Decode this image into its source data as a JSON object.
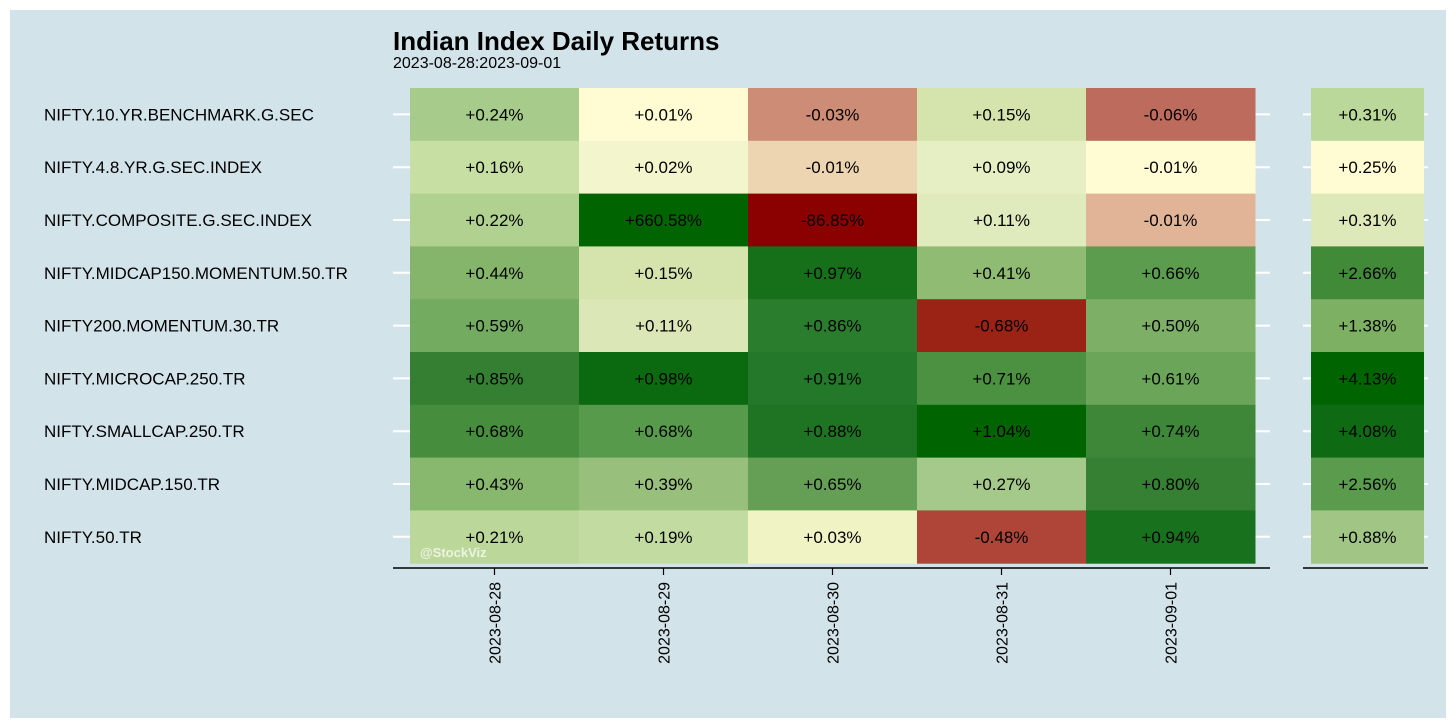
{
  "chart_data": {
    "type": "heatmap",
    "title": "Indian Index Daily Returns",
    "subtitle": "2023-08-28:2023-09-01",
    "x": [
      "2023-08-28",
      "2023-08-29",
      "2023-08-30",
      "2023-08-31",
      "2023-09-01"
    ],
    "y": [
      "NIFTY.10.YR.BENCHMARK.G.SEC",
      "NIFTY.4.8.YR.G.SEC.INDEX",
      "NIFTY.COMPOSITE.G.SEC.INDEX",
      "NIFTY.MIDCAP150.MOMENTUM.50.TR",
      "NIFTY200.MOMENTUM.30.TR",
      "NIFTY.MICROCAP.250.TR",
      "NIFTY.SMALLCAP.250.TR",
      "NIFTY.MIDCAP.150.TR",
      "NIFTY.50.TR"
    ],
    "values": [
      [
        0.24,
        0.01,
        -0.03,
        0.15,
        -0.06
      ],
      [
        0.16,
        0.02,
        -0.01,
        0.09,
        -0.01
      ],
      [
        0.22,
        660.58,
        -86.85,
        0.11,
        -0.01
      ],
      [
        0.44,
        0.15,
        0.97,
        0.41,
        0.66
      ],
      [
        0.59,
        0.11,
        0.86,
        -0.68,
        0.5
      ],
      [
        0.85,
        0.98,
        0.91,
        0.71,
        0.61
      ],
      [
        0.68,
        0.68,
        0.88,
        1.04,
        0.74
      ],
      [
        0.43,
        0.39,
        0.65,
        0.27,
        0.8
      ],
      [
        0.21,
        0.19,
        0.03,
        -0.48,
        0.94
      ]
    ],
    "cell_labels": [
      [
        "+0.24%",
        "+0.01%",
        "-0.03%",
        "+0.15%",
        "-0.06%"
      ],
      [
        "+0.16%",
        "+0.02%",
        "-0.01%",
        "+0.09%",
        "-0.01%"
      ],
      [
        "+0.22%",
        "+660.58%",
        "-86.85%",
        "+0.11%",
        "-0.01%"
      ],
      [
        "+0.44%",
        "+0.15%",
        "+0.97%",
        "+0.41%",
        "+0.66%"
      ],
      [
        "+0.59%",
        "+0.11%",
        "+0.86%",
        "-0.68%",
        "+0.50%"
      ],
      [
        "+0.85%",
        "+0.98%",
        "+0.91%",
        "+0.71%",
        "+0.61%"
      ],
      [
        "+0.68%",
        "+0.68%",
        "+0.88%",
        "+1.04%",
        "+0.74%"
      ],
      [
        "+0.43%",
        "+0.39%",
        "+0.65%",
        "+0.27%",
        "+0.80%"
      ],
      [
        "+0.21%",
        "+0.19%",
        "+0.03%",
        "-0.48%",
        "+0.94%"
      ]
    ],
    "cell_colors": [
      [
        "#a6cb8a",
        "#fffbd3",
        "#cd8c76",
        "#d5e3ad",
        "#bd6b5c"
      ],
      [
        "#c8dfa4",
        "#f3f6cc",
        "#edd5b2",
        "#e6efc3",
        "#fffbd3"
      ],
      [
        "#b1d190",
        "#006400",
        "#8b0000",
        "#dfeabd",
        "#e1b497"
      ],
      [
        "#84b56a",
        "#d5e3ad",
        "#16701a",
        "#8fbb72",
        "#5c9c4e"
      ],
      [
        "#73ab60",
        "#dce7b8",
        "#2b7d2e",
        "#9b2316",
        "#7daf66"
      ],
      [
        "#357f32",
        "#0b6a10",
        "#247829",
        "#4c9142",
        "#6ba55a"
      ],
      [
        "#478d3e",
        "#589a4b",
        "#1f7424",
        "#006400",
        "#3e8738"
      ],
      [
        "#88b86d",
        "#98c07c",
        "#659f55",
        "#a5c98a",
        "#368033"
      ],
      [
        "#bcd79a",
        "#c2dba1",
        "#f0f4c4",
        "#ae4538",
        "#18711c"
      ]
    ],
    "totals": {
      "values": [
        0.31,
        0.25,
        0.31,
        2.66,
        1.38,
        4.13,
        4.08,
        2.56,
        0.88
      ],
      "labels": [
        "+0.31%",
        "+0.25%",
        "+0.31%",
        "+2.66%",
        "+1.38%",
        "+4.13%",
        "+4.08%",
        "+2.56%",
        "+0.88%"
      ],
      "colors": [
        "#bad89a",
        "#fffbd3",
        "#dde9b8",
        "#418a38",
        "#7eb064",
        "#006400",
        "#0e6a13",
        "#5b9b4d",
        "#a0c585"
      ]
    },
    "watermark": "@StockViz",
    "colors": {
      "panel_background": "#d3e3ea",
      "positive_max": "#006400",
      "neutral": "#fffbd3",
      "negative_max": "#8b0000"
    }
  }
}
